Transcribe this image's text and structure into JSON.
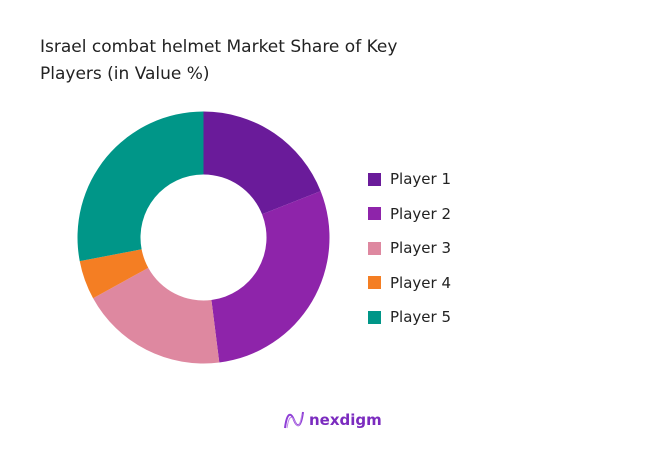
{
  "chart_data": {
    "type": "pie",
    "variant": "donut",
    "title": "Israel combat helmet Market Share of Key Players (in Value %)",
    "categories": [
      "Player 1",
      "Player 2",
      "Player 3",
      "Player 4",
      "Player 5"
    ],
    "values": [
      19,
      29,
      19,
      5,
      28
    ],
    "colors": [
      "#6a1b9a",
      "#8e24aa",
      "#de88a0",
      "#f47e23",
      "#009688"
    ],
    "legend_position": "right"
  },
  "brand": {
    "name": "nexdigm"
  }
}
